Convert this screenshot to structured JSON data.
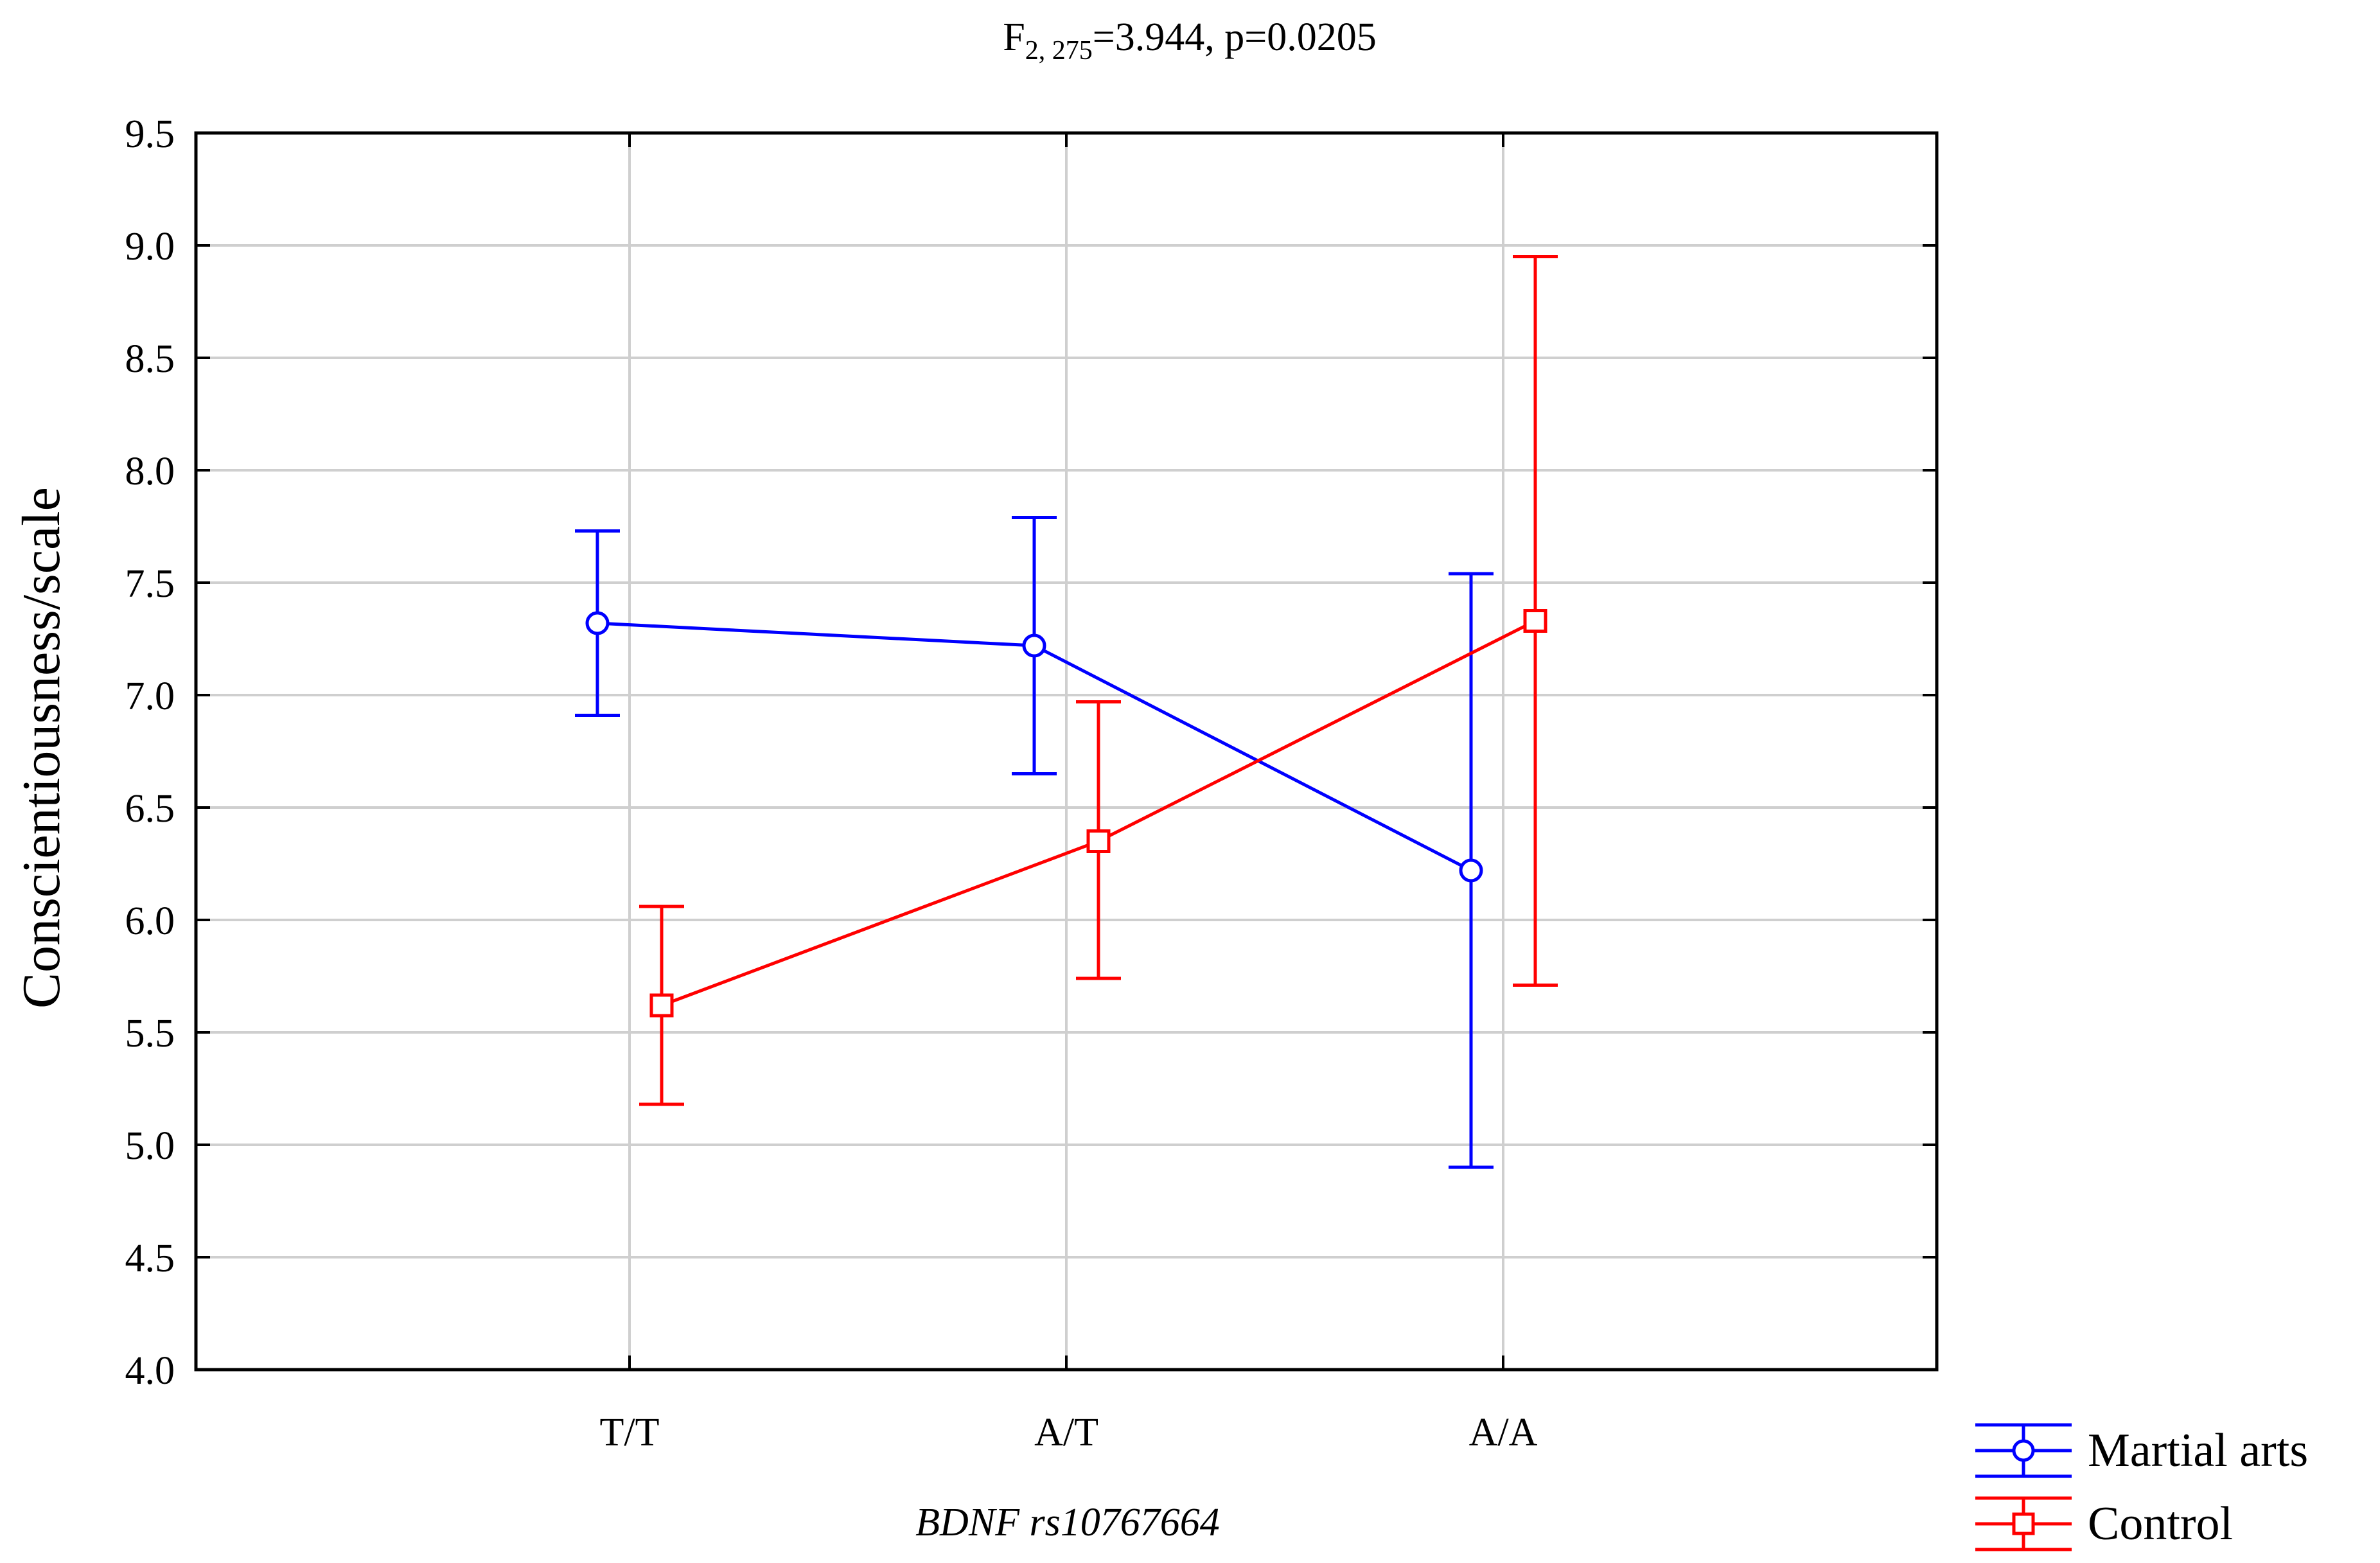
{
  "chart_data": {
    "type": "line",
    "title": {
      "prefix": "F",
      "subscript": "2, 275",
      "suffix": "=3.944, p=0.0205"
    },
    "xlabel": "BDNF rs10767664",
    "ylabel": "Conscientiousness/scale",
    "categories": [
      "T/T",
      "A/T",
      "A/A"
    ],
    "ylim": [
      4.0,
      9.5
    ],
    "yticks": [
      "4.0",
      "4.5",
      "5.0",
      "5.5",
      "6.0",
      "6.5",
      "7.0",
      "7.5",
      "8.0",
      "8.5",
      "9.0",
      "9.5"
    ],
    "grid": true,
    "legend_position": "bottom-right",
    "series": [
      {
        "name": "Martial arts",
        "color": "#0000ff",
        "marker": "circle",
        "values": [
          7.32,
          7.22,
          6.22
        ],
        "lower": [
          6.91,
          6.65,
          4.9
        ],
        "upper": [
          7.73,
          7.79,
          7.54
        ]
      },
      {
        "name": "Control",
        "color": "#ff0000",
        "marker": "square",
        "values": [
          5.62,
          6.35,
          7.33
        ],
        "lower": [
          5.18,
          5.74,
          5.71
        ],
        "upper": [
          6.06,
          6.97,
          8.95
        ]
      }
    ]
  }
}
